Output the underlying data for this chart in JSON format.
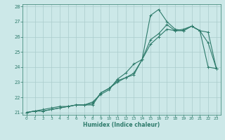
{
  "xlabel": "Humidex (Indice chaleur)",
  "bg_color": "#cce8e8",
  "grid_color": "#aacccc",
  "line_color": "#2e7b6b",
  "xlim": [
    -0.5,
    23.5
  ],
  "ylim": [
    20.85,
    28.15
  ],
  "xticks": [
    0,
    1,
    2,
    3,
    4,
    5,
    6,
    7,
    8,
    9,
    10,
    11,
    12,
    13,
    14,
    15,
    16,
    17,
    18,
    19,
    20,
    21,
    22,
    23
  ],
  "yticks": [
    21,
    22,
    23,
    24,
    25,
    26,
    27,
    28
  ],
  "line1_x": [
    0,
    1,
    2,
    3,
    4,
    5,
    6,
    7,
    8,
    9,
    10,
    11,
    12,
    13,
    14,
    15,
    16,
    17,
    18,
    19,
    20,
    21,
    22,
    23
  ],
  "line1_y": [
    21.0,
    21.1,
    21.1,
    21.2,
    21.3,
    21.4,
    21.5,
    21.5,
    21.6,
    22.3,
    22.6,
    23.1,
    23.3,
    23.6,
    24.5,
    27.4,
    27.8,
    27.0,
    26.5,
    26.4,
    26.7,
    26.4,
    26.3,
    23.9
  ],
  "line2_x": [
    0,
    1,
    2,
    3,
    4,
    5,
    6,
    7,
    8,
    9,
    10,
    11,
    12,
    13,
    14,
    15,
    16,
    17,
    18,
    19,
    20,
    21,
    22,
    23
  ],
  "line2_y": [
    21.0,
    21.1,
    21.1,
    21.2,
    21.3,
    21.4,
    21.5,
    21.5,
    21.7,
    22.2,
    22.5,
    23.2,
    23.6,
    24.2,
    24.5,
    25.5,
    26.0,
    26.5,
    26.4,
    26.5,
    26.7,
    26.4,
    24.0,
    23.9
  ],
  "line3_x": [
    0,
    1,
    2,
    3,
    4,
    5,
    6,
    7,
    8,
    9,
    10,
    11,
    12,
    13,
    14,
    15,
    16,
    17,
    18,
    19,
    20,
    21,
    22,
    23
  ],
  "line3_y": [
    21.0,
    21.1,
    21.2,
    21.3,
    21.4,
    21.4,
    21.5,
    21.5,
    21.5,
    22.3,
    22.6,
    23.0,
    23.3,
    23.5,
    24.5,
    25.8,
    26.2,
    26.8,
    26.4,
    26.4,
    26.7,
    26.4,
    25.6,
    23.9
  ]
}
